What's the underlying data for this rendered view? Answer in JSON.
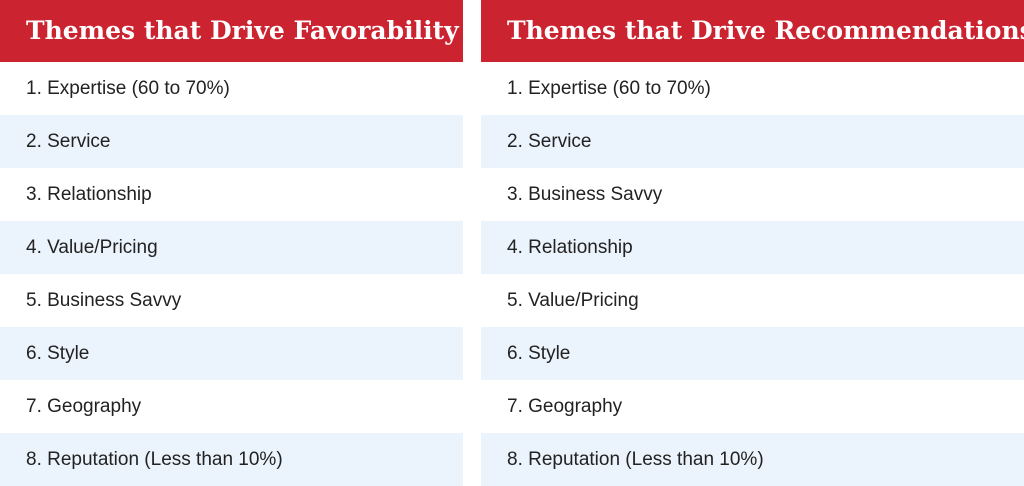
{
  "colors": {
    "header_bg": "#cc2331",
    "header_text": "#ffffff",
    "row_alt_bg": "#ebf3fc",
    "row_text": "#222222"
  },
  "left": {
    "title": "Themes that Drive Favorability",
    "items": [
      "1. Expertise (60 to 70%)",
      "2. Service",
      "3. Relationship",
      "4. Value/Pricing",
      "5. Business Savvy",
      "6. Style",
      "7. Geography",
      "8. Reputation (Less than 10%)"
    ]
  },
  "right": {
    "title": "Themes that Drive Recommendations",
    "items": [
      "1. Expertise (60 to 70%)",
      "2. Service",
      "3. Business Savvy",
      "4. Relationship",
      "5. Value/Pricing",
      "6. Style",
      "7. Geography",
      "8. Reputation (Less than 10%)"
    ]
  }
}
